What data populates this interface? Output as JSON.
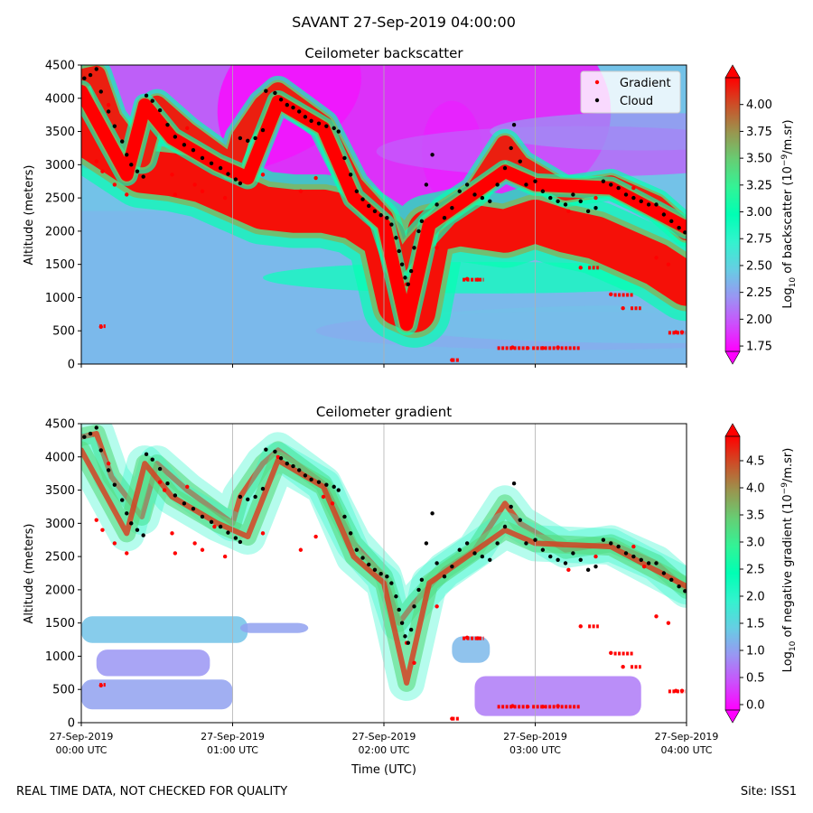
{
  "figure": {
    "title": "SAVANT 27-Sep-2019 04:00:00",
    "footer_left": "REAL TIME DATA, NOT CHECKED FOR QUALITY",
    "footer_right": "Site: ISS1"
  },
  "chart_data": [
    {
      "type": "heatmap",
      "title": "Ceilometer backscatter",
      "xlabel": "",
      "ylabel": "Altitude (meters)",
      "xlim": [
        "27-Sep-2019 00:00 UTC",
        "27-Sep-2019 04:00 UTC"
      ],
      "ylim": [
        0,
        4500
      ],
      "y_ticks": [
        0,
        500,
        1000,
        1500,
        2000,
        2500,
        3000,
        3500,
        4000,
        4500
      ],
      "vertical_gridlines_hours": [
        1,
        2,
        3
      ],
      "colorbar": {
        "label_prefix": "Log",
        "label_sub": "10",
        "label_mid": " of backscatter (10",
        "label_sup": "−9",
        "label_suffix": "/m.sr)",
        "range": [
          1.7,
          4.25
        ],
        "ticks": [
          "1.75",
          "2.00",
          "2.25",
          "2.50",
          "2.75",
          "3.00",
          "3.25",
          "3.50",
          "3.75",
          "4.00"
        ],
        "colormap": "rainbow",
        "extend": "both"
      },
      "legend": {
        "placement": "top-right",
        "entries": [
          {
            "name": "Gradient",
            "color": "#ff0000"
          },
          {
            "name": "Cloud",
            "color": "#000000"
          }
        ]
      }
    },
    {
      "type": "heatmap",
      "title": "Ceilometer gradient",
      "xlabel": "Time (UTC)",
      "ylabel": "Altitude (meters)",
      "xlim": [
        "27-Sep-2019 00:00 UTC",
        "27-Sep-2019 04:00 UTC"
      ],
      "ylim": [
        0,
        4500
      ],
      "y_ticks": [
        0,
        500,
        1000,
        1500,
        2000,
        2500,
        3000,
        3500,
        4000,
        4500
      ],
      "x_ticks": [
        {
          "hour": 0,
          "date": "27-Sep-2019",
          "time": "00:00 UTC"
        },
        {
          "hour": 1,
          "date": "27-Sep-2019",
          "time": "01:00 UTC"
        },
        {
          "hour": 2,
          "date": "27-Sep-2019",
          "time": "02:00 UTC"
        },
        {
          "hour": 3,
          "date": "27-Sep-2019",
          "time": "03:00 UTC"
        },
        {
          "hour": 4,
          "date": "27-Sep-2019",
          "time": "04:00 UTC"
        }
      ],
      "vertical_gridlines_hours": [
        1,
        2,
        3
      ],
      "colorbar": {
        "label_prefix": "Log",
        "label_sub": "10",
        "label_mid": " of negative gradient (10",
        "label_sup": "−9",
        "label_suffix": "/m.sr)",
        "range": [
          -0.1,
          4.95
        ],
        "ticks": [
          "0.0",
          "0.5",
          "1.0",
          "1.5",
          "2.0",
          "2.5",
          "3.0",
          "3.5",
          "4.0",
          "4.5"
        ],
        "colormap": "rainbow",
        "extend": "both"
      }
    }
  ],
  "series": {
    "cloud": [
      [
        0.02,
        4300
      ],
      [
        0.06,
        4350
      ],
      [
        0.1,
        4440
      ],
      [
        0.13,
        4100
      ],
      [
        0.18,
        3800
      ],
      [
        0.22,
        3580
      ],
      [
        0.27,
        3350
      ],
      [
        0.3,
        3150
      ],
      [
        0.33,
        3000
      ],
      [
        0.37,
        2900
      ],
      [
        0.41,
        2820
      ],
      [
        0.43,
        4040
      ],
      [
        0.47,
        3960
      ],
      [
        0.52,
        3820
      ],
      [
        0.57,
        3600
      ],
      [
        0.62,
        3420
      ],
      [
        0.68,
        3300
      ],
      [
        0.74,
        3220
      ],
      [
        0.8,
        3100
      ],
      [
        0.86,
        3020
      ],
      [
        0.92,
        2950
      ],
      [
        0.97,
        2860
      ],
      [
        1.02,
        2780
      ],
      [
        1.05,
        2720
      ],
      [
        1.05,
        3400
      ],
      [
        1.1,
        3360
      ],
      [
        1.15,
        3400
      ],
      [
        1.2,
        3520
      ],
      [
        1.22,
        4110
      ],
      [
        1.28,
        4080
      ],
      [
        1.32,
        3980
      ],
      [
        1.36,
        3900
      ],
      [
        1.4,
        3860
      ],
      [
        1.44,
        3800
      ],
      [
        1.48,
        3720
      ],
      [
        1.52,
        3660
      ],
      [
        1.57,
        3620
      ],
      [
        1.62,
        3580
      ],
      [
        1.67,
        3550
      ],
      [
        1.7,
        3500
      ],
      [
        1.74,
        3100
      ],
      [
        1.78,
        2850
      ],
      [
        1.82,
        2600
      ],
      [
        1.86,
        2480
      ],
      [
        1.9,
        2380
      ],
      [
        1.94,
        2300
      ],
      [
        1.98,
        2240
      ],
      [
        2.02,
        2200
      ],
      [
        2.05,
        2100
      ],
      [
        2.08,
        1900
      ],
      [
        2.1,
        1700
      ],
      [
        2.12,
        1500
      ],
      [
        2.14,
        1300
      ],
      [
        2.16,
        1200
      ],
      [
        2.18,
        1400
      ],
      [
        2.2,
        1750
      ],
      [
        2.23,
        2000
      ],
      [
        2.25,
        2150
      ],
      [
        2.28,
        2700
      ],
      [
        2.32,
        3150
      ],
      [
        2.35,
        2400
      ],
      [
        2.4,
        2200
      ],
      [
        2.45,
        2350
      ],
      [
        2.5,
        2600
      ],
      [
        2.55,
        2700
      ],
      [
        2.6,
        2550
      ],
      [
        2.65,
        2500
      ],
      [
        2.7,
        2450
      ],
      [
        2.75,
        2700
      ],
      [
        2.8,
        2950
      ],
      [
        2.84,
        3250
      ],
      [
        2.86,
        3600
      ],
      [
        2.9,
        3050
      ],
      [
        2.94,
        2700
      ],
      [
        3.0,
        2750
      ],
      [
        3.05,
        2600
      ],
      [
        3.1,
        2500
      ],
      [
        3.15,
        2450
      ],
      [
        3.2,
        2400
      ],
      [
        3.25,
        2550
      ],
      [
        3.3,
        2450
      ],
      [
        3.35,
        2300
      ],
      [
        3.4,
        2350
      ],
      [
        3.45,
        2750
      ],
      [
        3.5,
        2700
      ],
      [
        3.55,
        2650
      ],
      [
        3.6,
        2550
      ],
      [
        3.65,
        2500
      ],
      [
        3.7,
        2450
      ],
      [
        3.75,
        2400
      ],
      [
        3.8,
        2400
      ],
      [
        3.85,
        2250
      ],
      [
        3.9,
        2150
      ],
      [
        3.95,
        2050
      ],
      [
        3.99,
        1980
      ]
    ],
    "gradient": [
      [
        0.1,
        3050
      ],
      [
        0.14,
        2900
      ],
      [
        0.18,
        3900
      ],
      [
        0.22,
        2700
      ],
      [
        0.3,
        2550
      ],
      [
        0.13,
        560
      ],
      [
        0.52,
        3620
      ],
      [
        0.55,
        3500
      ],
      [
        0.6,
        2850
      ],
      [
        0.62,
        2550
      ],
      [
        0.7,
        3550
      ],
      [
        0.75,
        2700
      ],
      [
        0.8,
        2600
      ],
      [
        0.88,
        2950
      ],
      [
        0.95,
        2500
      ],
      [
        1.2,
        2850
      ],
      [
        1.3,
        4000
      ],
      [
        1.45,
        2600
      ],
      [
        1.55,
        2800
      ],
      [
        1.6,
        3400
      ],
      [
        1.66,
        3300
      ],
      [
        2.15,
        1200
      ],
      [
        2.2,
        900
      ],
      [
        2.35,
        1750
      ],
      [
        2.45,
        60
      ],
      [
        2.55,
        1280
      ],
      [
        2.62,
        1270
      ],
      [
        2.85,
        250
      ],
      [
        2.95,
        240
      ],
      [
        3.05,
        240
      ],
      [
        3.15,
        250
      ],
      [
        3.22,
        2300
      ],
      [
        3.3,
        1450
      ],
      [
        3.4,
        2500
      ],
      [
        3.5,
        1050
      ],
      [
        3.58,
        840
      ],
      [
        3.65,
        2650
      ],
      [
        3.72,
        2350
      ],
      [
        3.8,
        1600
      ],
      [
        3.88,
        1500
      ],
      [
        3.93,
        480
      ],
      [
        3.97,
        480
      ]
    ],
    "gradient_segments": [
      [
        0.12,
        0.16,
        570
      ],
      [
        2.45,
        2.5,
        60
      ],
      [
        2.52,
        2.66,
        1270
      ],
      [
        2.75,
        2.95,
        240
      ],
      [
        2.98,
        3.3,
        240
      ],
      [
        3.35,
        3.42,
        1450
      ],
      [
        3.52,
        3.65,
        1040
      ],
      [
        3.63,
        3.7,
        840
      ],
      [
        3.88,
        3.99,
        470
      ]
    ],
    "backscatter_bands": [
      {
        "points": [
          [
            0.0,
            3500
          ],
          [
            0.2,
            3200
          ],
          [
            0.4,
            2900
          ],
          [
            0.6,
            2850
          ],
          [
            0.8,
            2750
          ],
          [
            1.0,
            2550
          ],
          [
            1.2,
            2350
          ],
          [
            1.4,
            2300
          ],
          [
            1.6,
            2300
          ],
          [
            1.8,
            2200
          ],
          [
            2.0,
            1900
          ],
          [
            2.1,
            900
          ],
          [
            2.2,
            800
          ],
          [
            2.3,
            2000
          ],
          [
            2.5,
            2100
          ],
          [
            2.8,
            2000
          ],
          [
            3.0,
            2150
          ],
          [
            3.2,
            2000
          ],
          [
            3.4,
            1900
          ],
          [
            3.6,
            1700
          ],
          [
            3.8,
            1500
          ],
          [
            4.0,
            1200
          ]
        ],
        "width": 650,
        "value": 4.2
      },
      {
        "points": [
          [
            0.0,
            4300
          ],
          [
            0.1,
            4350
          ],
          [
            0.2,
            3700
          ],
          [
            0.4,
            3100
          ],
          [
            0.5,
            3900
          ],
          [
            0.7,
            3500
          ],
          [
            1.0,
            3000
          ],
          [
            1.05,
            3400
          ],
          [
            1.2,
            3900
          ],
          [
            1.3,
            4100
          ],
          [
            1.6,
            3600
          ],
          [
            1.8,
            2700
          ],
          [
            2.0,
            2200
          ],
          [
            2.1,
            1500
          ],
          [
            2.2,
            1800
          ],
          [
            2.4,
            2300
          ],
          [
            2.6,
            2600
          ],
          [
            2.8,
            3300
          ],
          [
            2.9,
            3000
          ],
          [
            3.2,
            2600
          ],
          [
            3.5,
            2700
          ],
          [
            3.8,
            2400
          ],
          [
            4.0,
            2000
          ]
        ],
        "width": 280,
        "value": 4.15
      },
      {
        "points": [
          [
            0.0,
            4100
          ],
          [
            0.3,
            2850
          ],
          [
            0.42,
            3900
          ],
          [
            0.6,
            3400
          ],
          [
            0.9,
            3000
          ],
          [
            1.1,
            2800
          ],
          [
            1.3,
            3950
          ],
          [
            1.6,
            3550
          ],
          [
            1.8,
            2500
          ],
          [
            2.0,
            2100
          ],
          [
            2.15,
            600
          ],
          [
            2.3,
            2100
          ],
          [
            2.8,
            2900
          ],
          [
            3.0,
            2700
          ],
          [
            3.5,
            2650
          ],
          [
            4.0,
            2050
          ]
        ],
        "width": 200,
        "value": 4.3
      }
    ],
    "backscatter_blobs": [
      [
        0.6,
        2.5,
        1.6,
        4300,
        1.9
      ],
      [
        2.2,
        2.6,
        2.0,
        3800,
        1.7
      ],
      [
        2.45,
        0.4,
        0.8,
        3200,
        1.8
      ],
      [
        3.3,
        2.7,
        0.4,
        3200,
        2.0
      ],
      [
        3.7,
        2.0,
        0.3,
        3500,
        2.2
      ],
      [
        3.25,
        3.4,
        0.3,
        500,
        2.3
      ],
      [
        2.7,
        3.0,
        0.25,
        1300,
        2.9
      ],
      [
        3.8,
        3.5,
        0.3,
        600,
        2.4
      ]
    ],
    "gradient_low_bands": [
      [
        0.0,
        1.1,
        1200,
        1600,
        1.3
      ],
      [
        0.1,
        0.85,
        700,
        1100,
        0.9
      ],
      [
        0.0,
        1.0,
        200,
        650,
        1.0
      ],
      [
        2.6,
        3.7,
        100,
        700,
        0.7
      ],
      [
        2.45,
        2.7,
        900,
        1300,
        1.2
      ],
      [
        1.05,
        1.5,
        1350,
        1500,
        1.0
      ]
    ]
  }
}
